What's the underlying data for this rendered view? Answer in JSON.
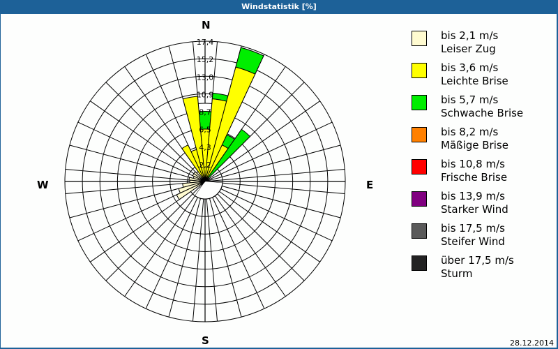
{
  "window": {
    "title": "Windstatistik [%]"
  },
  "compass": {
    "north": "N",
    "south": "S",
    "east": "E",
    "west": "W"
  },
  "footer": {
    "date": "28.12.2014"
  },
  "legend": [
    {
      "range": "bis 2,1 m/s",
      "name": "Leiser Zug",
      "color": "#fffbd0"
    },
    {
      "range": "bis 3,6 m/s",
      "name": "Leichte Brise",
      "color": "#ffff00"
    },
    {
      "range": "bis 5,7 m/s",
      "name": "Schwache Brise",
      "color": "#00ee00"
    },
    {
      "range": "bis 8,2 m/s",
      "name": "Mäßige Brise",
      "color": "#ff8000"
    },
    {
      "range": "bis 10,8 m/s",
      "name": "Frische Brise",
      "color": "#ff0000"
    },
    {
      "range": "bis 13,9 m/s",
      "name": "Starker Wind",
      "color": "#800080"
    },
    {
      "range": "bis 17,5 m/s",
      "name": "Steifer Wind",
      "color": "#5a5a5a"
    },
    {
      "range": "über 17,5 m/s",
      "name": "Sturm",
      "color": "#222222"
    }
  ],
  "chart_data": {
    "type": "polar-stacked-bar (wind rose)",
    "title": "Windstatistik [%]",
    "radial_unit": "%",
    "radial_ticks": [
      "2,2",
      "4,3",
      "6,5",
      "8,7",
      "10,9",
      "13,0",
      "15,2",
      "17,4"
    ],
    "radial_max": 17.4,
    "sector_width_deg": 10,
    "sector_count": 36,
    "directions_labels": [
      "N",
      "E",
      "S",
      "W"
    ],
    "series_names": [
      "Leiser Zug",
      "Leichte Brise",
      "Schwache Brise",
      "Mäßige Brise",
      "Frische Brise",
      "Starker Wind",
      "Steifer Wind",
      "Sturm"
    ],
    "sectors": [
      {
        "dir": 0,
        "cumulative": {
          "Leichte Brise": 6.5,
          "Schwache Brise": 8.7,
          "unclassified": 9.7
        }
      },
      {
        "dir": 10,
        "cumulative": {
          "Leichte Brise": 10.3,
          "Schwache Brise": 11.0
        }
      },
      {
        "dir": 20,
        "cumulative": {
          "Leichte Brise": 14.7,
          "Schwache Brise": 17.2
        }
      },
      {
        "dir": 30,
        "cumulative": {
          "Leichte Brise": 5.0,
          "Schwache Brise": 6.4
        }
      },
      {
        "dir": 40,
        "cumulative": {
          "Leiser Zug": 0.3,
          "Leichte Brise": 0.6,
          "Schwache Brise": 7.9
        }
      },
      {
        "dir": 340,
        "cumulative": {
          "Leichte Brise": 4.1
        }
      },
      {
        "dir": 330,
        "cumulative": {
          "Leichte Brise": 5.0
        }
      },
      {
        "dir": 350,
        "cumulative": {
          "Leichte Brise": 10.6
        }
      },
      {
        "dir": 320,
        "cumulative": {
          "Leiser Zug": 1.5
        }
      },
      {
        "dir": 310,
        "cumulative": {
          "Leiser Zug": 1.7
        }
      },
      {
        "dir": 300,
        "cumulative": {
          "Leiser Zug": 1.7
        }
      },
      {
        "dir": 290,
        "cumulative": {
          "Leiser Zug": 1.5
        }
      },
      {
        "dir": 280,
        "cumulative": {
          "Leiser Zug": 2.0
        }
      },
      {
        "dir": 270,
        "cumulative": {
          "Leiser Zug": 1.9
        }
      },
      {
        "dir": 260,
        "cumulative": {
          "Leiser Zug": 2.8
        }
      },
      {
        "dir": 250,
        "cumulative": {
          "Leiser Zug": 3.4
        }
      },
      {
        "dir": 240,
        "cumulative": {
          "Leiser Zug": 3.9
        }
      },
      {
        "dir": 230,
        "cumulative": {
          "Leiser Zug": 0.6
        }
      }
    ]
  }
}
